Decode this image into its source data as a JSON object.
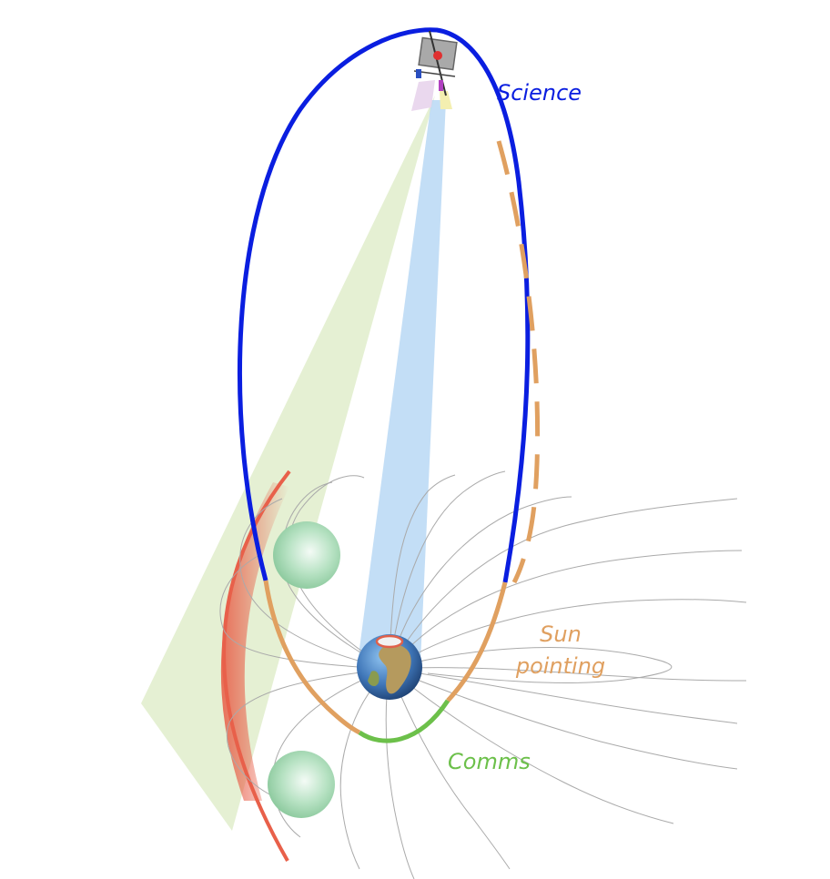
{
  "labels": {
    "science": "Science",
    "sun_pointing_line1": "Sun",
    "sun_pointing_line2": "pointing",
    "comms": "Comms"
  },
  "colors": {
    "science": "#0a1ee0",
    "sun_pointing": "#e0a060",
    "comms": "#6cc04a",
    "bow_shock": "#e8604a",
    "field_lines": "#aaaaaa",
    "green_fov": "#dcebc4",
    "blue_fov": "#b8d8f4",
    "moon": "#9fd6ae"
  },
  "icons": [
    "spacecraft-icon",
    "earth-icon"
  ]
}
